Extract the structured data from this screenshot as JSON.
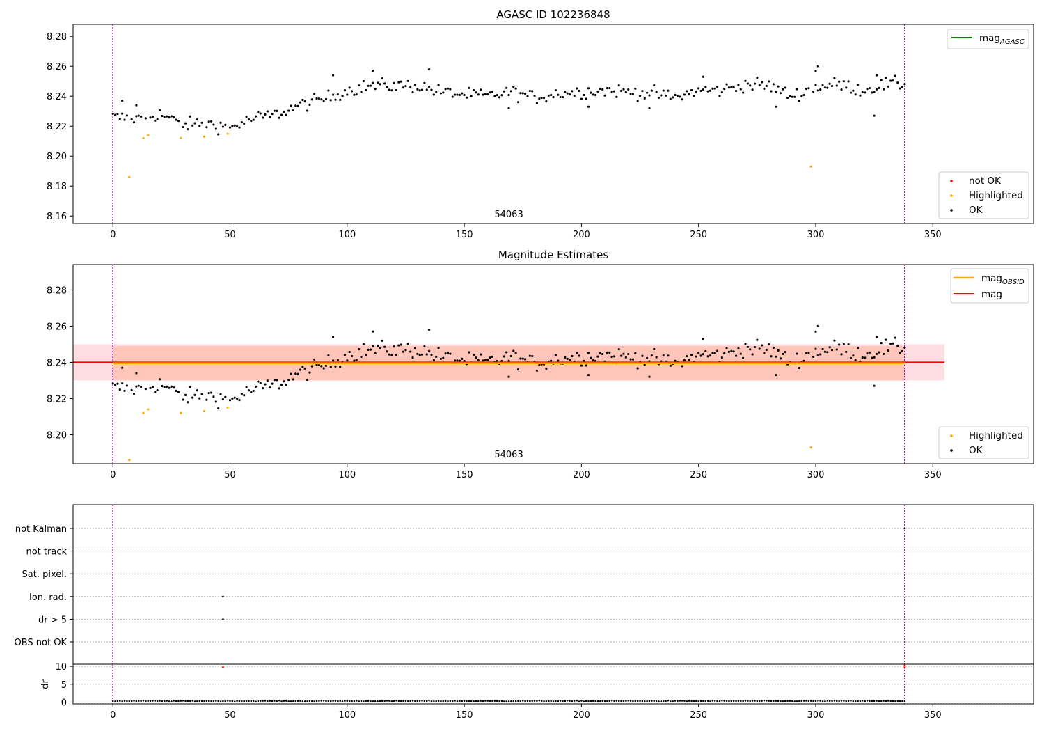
{
  "figure_title": "AGASC ID 102236848",
  "chart_data": [
    {
      "type": "scatter",
      "title": "AGASC ID 102236848",
      "xlim": [
        -17,
        393
      ],
      "ylim": [
        8.155,
        8.288
      ],
      "xticks": [
        0,
        50,
        100,
        150,
        200,
        250,
        300,
        350
      ],
      "yticks": [
        8.16,
        8.18,
        8.2,
        8.22,
        8.24,
        8.26,
        8.28
      ],
      "ytick_labels": [
        "8.16",
        "8.18",
        "8.20",
        "8.22",
        "8.24",
        "8.26",
        "8.28"
      ],
      "obsid_label": "54063",
      "obsid_label_x": 169,
      "vlines": [
        0,
        338
      ],
      "legend_upper": [
        {
          "label": "mag",
          "sub": "AGASC",
          "color": "#008000"
        }
      ],
      "legend_lower": [
        {
          "label": "not OK",
          "color": "#ff0000"
        },
        {
          "label": "Highlighted",
          "color": "#ffa500"
        },
        {
          "label": "OK",
          "color": "#000000"
        }
      ]
    },
    {
      "type": "scatter",
      "title": "Magnitude Estimates",
      "xlim": [
        -17,
        393
      ],
      "ylim": [
        8.184,
        8.294
      ],
      "xticks": [
        0,
        50,
        100,
        150,
        200,
        250,
        300,
        350
      ],
      "yticks": [
        8.2,
        8.22,
        8.24,
        8.26,
        8.28
      ],
      "ytick_labels": [
        "8.20",
        "8.22",
        "8.24",
        "8.26",
        "8.28"
      ],
      "obsid_label": "54063",
      "obsid_label_x": 169,
      "vlines": [
        0,
        338
      ],
      "mag_mean": 8.24,
      "mag_band": [
        8.23,
        8.25
      ],
      "mag_band_xrange": [
        -17,
        355
      ],
      "mag_obsid_mean": 8.2395,
      "mag_obsid_band": [
        8.23,
        8.249
      ],
      "mag_obsid_xrange": [
        0,
        338
      ],
      "legend_upper": [
        {
          "label": "mag",
          "sub": "OBSID",
          "color": "#ffa500"
        },
        {
          "label": "mag",
          "sub": "",
          "color": "#ff0000"
        }
      ],
      "legend_lower": [
        {
          "label": "Highlighted",
          "color": "#ffa500"
        },
        {
          "label": "OK",
          "color": "#000000"
        }
      ]
    },
    {
      "type": "scatter",
      "title": "",
      "xlim": [
        -17,
        393
      ],
      "flag_rows": [
        "not Kalman",
        "not track",
        "Sat. pixel.",
        "Ion. rad.",
        "dr > 5",
        "OBS not OK"
      ],
      "flag_points": [
        {
          "row": "Ion. rad.",
          "x": 47
        },
        {
          "row": "dr > 5",
          "x": 47
        },
        {
          "row": "not Kalman",
          "x": 338
        }
      ],
      "dr_ylabel": "dr",
      "dr_yticks": [
        0,
        5,
        10
      ],
      "dr_ytick_labels": [
        "0",
        "5",
        "10"
      ],
      "dr_ylim": [
        -0.5,
        10.6
      ],
      "dr_typical": 0.3,
      "dr_outliers": [
        {
          "x": 47,
          "y": 9.7
        },
        {
          "x": 338,
          "y": 9.6
        },
        {
          "x": 338,
          "y": 10.2
        }
      ],
      "xticks": [
        0,
        50,
        100,
        150,
        200,
        250,
        300,
        350
      ],
      "vlines": [
        0,
        338
      ]
    }
  ],
  "series_mag": {
    "n": 339,
    "anchors": [
      [
        0,
        8.226
      ],
      [
        10,
        8.225
      ],
      [
        20,
        8.228
      ],
      [
        30,
        8.221
      ],
      [
        40,
        8.222
      ],
      [
        50,
        8.219
      ],
      [
        60,
        8.225
      ],
      [
        70,
        8.228
      ],
      [
        80,
        8.234
      ],
      [
        90,
        8.238
      ],
      [
        100,
        8.244
      ],
      [
        110,
        8.247
      ],
      [
        120,
        8.247
      ],
      [
        130,
        8.247
      ],
      [
        140,
        8.243
      ],
      [
        150,
        8.241
      ],
      [
        160,
        8.24
      ],
      [
        170,
        8.243
      ],
      [
        180,
        8.239
      ],
      [
        190,
        8.242
      ],
      [
        200,
        8.243
      ],
      [
        210,
        8.244
      ],
      [
        220,
        8.243
      ],
      [
        230,
        8.242
      ],
      [
        240,
        8.239
      ],
      [
        250,
        8.244
      ],
      [
        260,
        8.244
      ],
      [
        270,
        8.248
      ],
      [
        280,
        8.247
      ],
      [
        290,
        8.24
      ],
      [
        300,
        8.246
      ],
      [
        310,
        8.248
      ],
      [
        320,
        8.244
      ],
      [
        330,
        8.248
      ],
      [
        338,
        8.248
      ]
    ],
    "jitter": 0.0045,
    "extra_ok": [
      {
        "x": 4,
        "y": 8.237
      },
      {
        "x": 10,
        "y": 8.234
      },
      {
        "x": 111,
        "y": 8.257
      },
      {
        "x": 135,
        "y": 8.258
      },
      {
        "x": 94,
        "y": 8.254
      },
      {
        "x": 301,
        "y": 8.26
      },
      {
        "x": 300,
        "y": 8.257
      },
      {
        "x": 326,
        "y": 8.254
      },
      {
        "x": 325,
        "y": 8.227
      },
      {
        "x": 283,
        "y": 8.233
      },
      {
        "x": 203,
        "y": 8.233
      },
      {
        "x": 169,
        "y": 8.232
      },
      {
        "x": 229,
        "y": 8.232
      },
      {
        "x": 252,
        "y": 8.253
      }
    ],
    "highlighted": [
      {
        "x": 7,
        "y": 8.186
      },
      {
        "x": 13,
        "y": 8.212
      },
      {
        "x": 15,
        "y": 8.214
      },
      {
        "x": 29,
        "y": 8.212
      },
      {
        "x": 39,
        "y": 8.213
      },
      {
        "x": 49,
        "y": 8.215
      },
      {
        "x": 298,
        "y": 8.193
      }
    ]
  },
  "colors": {
    "ok": "#000000",
    "highlighted": "#ffa500",
    "not_ok": "#ff0000",
    "mag_agasc": "#008000",
    "mag": "#ff0000",
    "mag_obsid": "#ffa500",
    "vline": "#800080",
    "band_mag": "#ffb6c1",
    "band_obsid": "#ffa07a"
  }
}
